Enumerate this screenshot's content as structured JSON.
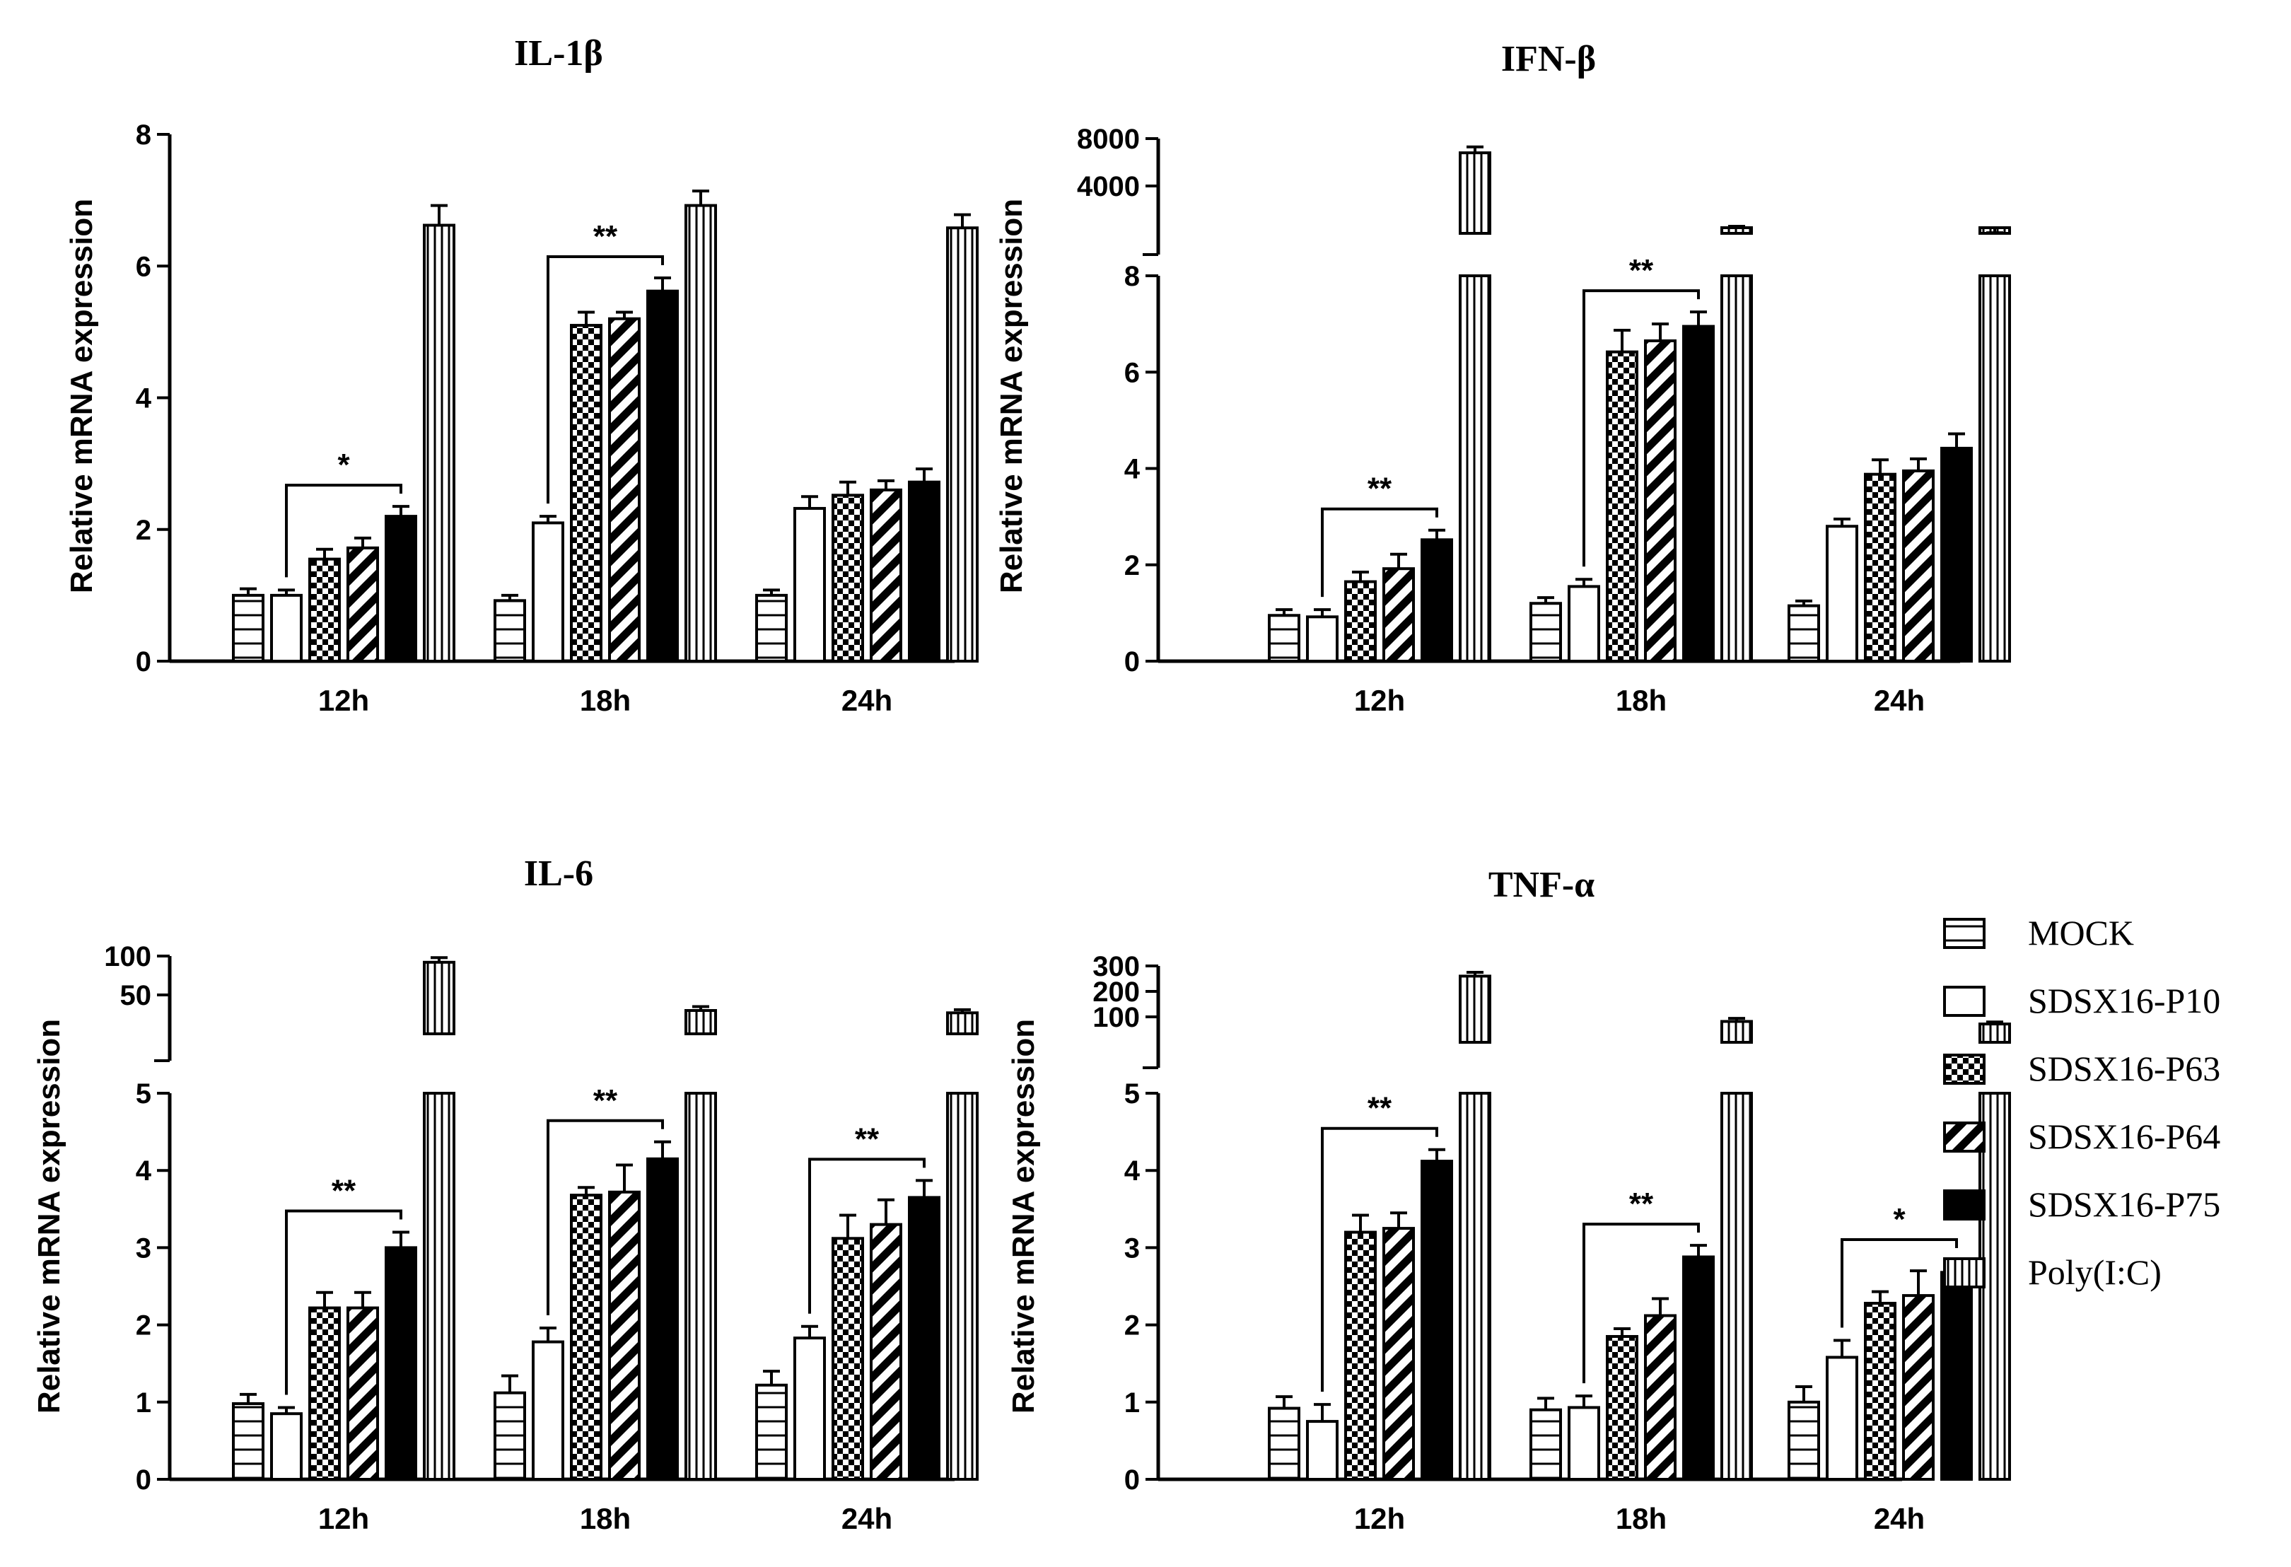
{
  "legend": [
    {
      "label": "MOCK",
      "pattern": "hlines"
    },
    {
      "label": "SDSX16-P10",
      "pattern": "white"
    },
    {
      "label": "SDSX16-P63",
      "pattern": "checker"
    },
    {
      "label": "SDSX16-P64",
      "pattern": "diag"
    },
    {
      "label": "SDSX16-P75",
      "pattern": "solid"
    },
    {
      "label": "Poly(I:C)",
      "pattern": "vlines"
    }
  ],
  "chart_data": [
    {
      "type": "bar",
      "title": "IL-1β",
      "xlabel": "",
      "ylabel": "Relative mRNA expression",
      "categories": [
        "12h",
        "18h",
        "24h"
      ],
      "ylim": [
        0,
        8
      ],
      "yticks": [
        "0",
        "2",
        "4",
        "6",
        "8"
      ],
      "series": [
        {
          "name": "MOCK",
          "values": [
            1.0,
            0.92,
            1.0
          ],
          "errors": [
            0.1,
            0.08,
            0.08
          ]
        },
        {
          "name": "SDSX16-P10",
          "values": [
            1.0,
            2.1,
            2.32
          ],
          "errors": [
            0.08,
            0.1,
            0.18
          ]
        },
        {
          "name": "SDSX16-P63",
          "values": [
            1.55,
            5.1,
            2.52
          ],
          "errors": [
            0.15,
            0.2,
            0.2
          ]
        },
        {
          "name": "SDSX16-P64",
          "values": [
            1.72,
            5.2,
            2.6
          ],
          "errors": [
            0.15,
            0.1,
            0.14
          ]
        },
        {
          "name": "SDSX16-P75",
          "values": [
            2.2,
            5.62,
            2.72
          ],
          "errors": [
            0.15,
            0.2,
            0.2
          ]
        },
        {
          "name": "Poly(I:C)",
          "values": [
            6.62,
            6.92,
            6.58
          ],
          "errors": [
            0.3,
            0.22,
            0.2
          ]
        }
      ],
      "annotations": [
        {
          "text": "*",
          "from": "SDSX16-P10",
          "to": "SDSX16-P75",
          "category": "12h"
        },
        {
          "text": "**",
          "from": "SDSX16-P10",
          "to": "SDSX16-P75",
          "category": "18h"
        }
      ]
    },
    {
      "type": "bar",
      "title": "IFN-β",
      "xlabel": "",
      "ylabel": "Relative mRNA expression",
      "categories": [
        "12h",
        "18h",
        "24h"
      ],
      "ylim": [
        0,
        8
      ],
      "yticks": [
        "0",
        "2",
        "4",
        "6",
        "8"
      ],
      "upper_segment": {
        "ylim": [
          0,
          8000
        ],
        "yticks": [
          "4000",
          "8000"
        ]
      },
      "series": [
        {
          "name": "MOCK",
          "values": [
            0.95,
            1.2,
            1.15
          ],
          "errors": [
            0.12,
            0.12,
            0.1
          ]
        },
        {
          "name": "SDSX16-P10",
          "values": [
            0.92,
            1.55,
            2.8
          ],
          "errors": [
            0.15,
            0.15,
            0.15
          ]
        },
        {
          "name": "SDSX16-P63",
          "values": [
            1.65,
            6.42,
            3.88
          ],
          "errors": [
            0.2,
            0.45,
            0.3
          ]
        },
        {
          "name": "SDSX16-P64",
          "values": [
            1.92,
            6.65,
            3.95
          ],
          "errors": [
            0.3,
            0.35,
            0.25
          ]
        },
        {
          "name": "SDSX16-P75",
          "values": [
            2.52,
            6.95,
            4.42
          ],
          "errors": [
            0.2,
            0.3,
            0.3
          ]
        },
        {
          "name": "Poly(I:C)",
          "values": [
            6800,
            300,
            40
          ],
          "errors": [
            500,
            300,
            10
          ]
        }
      ],
      "annotations": [
        {
          "text": "**",
          "from": "SDSX16-P10",
          "to": "SDSX16-P75",
          "category": "12h"
        },
        {
          "text": "**",
          "from": "SDSX16-P10",
          "to": "SDSX16-P75",
          "category": "18h"
        }
      ]
    },
    {
      "type": "bar",
      "title": "IL-6",
      "xlabel": "",
      "ylabel": "Relative mRNA expression",
      "categories": [
        "12h",
        "18h",
        "24h"
      ],
      "ylim": [
        0,
        5
      ],
      "yticks": [
        "0",
        "1",
        "2",
        "3",
        "4",
        "5"
      ],
      "upper_segment": {
        "ylim": [
          0,
          100
        ],
        "yticks": [
          "50",
          "100"
        ]
      },
      "series": [
        {
          "name": "MOCK",
          "values": [
            0.98,
            1.12,
            1.22
          ],
          "errors": [
            0.12,
            0.22,
            0.18
          ]
        },
        {
          "name": "SDSX16-P10",
          "values": [
            0.85,
            1.78,
            1.83
          ],
          "errors": [
            0.08,
            0.18,
            0.15
          ]
        },
        {
          "name": "SDSX16-P63",
          "values": [
            2.22,
            3.68,
            3.12
          ],
          "errors": [
            0.2,
            0.1,
            0.3
          ]
        },
        {
          "name": "SDSX16-P64",
          "values": [
            2.22,
            3.72,
            3.3
          ],
          "errors": [
            0.2,
            0.35,
            0.32
          ]
        },
        {
          "name": "SDSX16-P75",
          "values": [
            3.0,
            4.15,
            3.65
          ],
          "errors": [
            0.2,
            0.22,
            0.22
          ]
        },
        {
          "name": "Poly(I:C)",
          "values": [
            92,
            30,
            27
          ],
          "errors": [
            6,
            5,
            4
          ]
        }
      ],
      "annotations": [
        {
          "text": "**",
          "from": "SDSX16-P10",
          "to": "SDSX16-P75",
          "category": "12h"
        },
        {
          "text": "**",
          "from": "SDSX16-P10",
          "to": "SDSX16-P75",
          "category": "18h"
        },
        {
          "text": "**",
          "from": "SDSX16-P10",
          "to": "SDSX16-P75",
          "category": "24h"
        }
      ]
    },
    {
      "type": "bar",
      "title": "TNF-α",
      "xlabel": "",
      "ylabel": "Relative mRNA expression",
      "categories": [
        "12h",
        "18h",
        "24h"
      ],
      "ylim": [
        0,
        5
      ],
      "yticks": [
        "0",
        "1",
        "2",
        "3",
        "4",
        "5"
      ],
      "upper_segment": {
        "ylim": [
          0,
          300
        ],
        "yticks": [
          "100",
          "200",
          "300"
        ]
      },
      "series": [
        {
          "name": "MOCK",
          "values": [
            0.92,
            0.9,
            1.0
          ],
          "errors": [
            0.15,
            0.15,
            0.2
          ]
        },
        {
          "name": "SDSX16-P10",
          "values": [
            0.75,
            0.93,
            1.58
          ],
          "errors": [
            0.22,
            0.15,
            0.22
          ]
        },
        {
          "name": "SDSX16-P63",
          "values": [
            3.2,
            1.85,
            2.28
          ],
          "errors": [
            0.22,
            0.1,
            0.15
          ]
        },
        {
          "name": "SDSX16-P64",
          "values": [
            3.25,
            2.12,
            2.38
          ],
          "errors": [
            0.2,
            0.22,
            0.32
          ]
        },
        {
          "name": "SDSX16-P75",
          "values": [
            4.12,
            2.88,
            2.68
          ],
          "errors": [
            0.15,
            0.15,
            0.15
          ]
        },
        {
          "name": "Poly(I:C)",
          "values": [
            260,
            82,
            72
          ],
          "errors": [
            15,
            12,
            8
          ]
        }
      ],
      "annotations": [
        {
          "text": "**",
          "from": "SDSX16-P10",
          "to": "SDSX16-P75",
          "category": "12h"
        },
        {
          "text": "**",
          "from": "SDSX16-P10",
          "to": "SDSX16-P75",
          "category": "18h"
        },
        {
          "text": "*",
          "from": "SDSX16-P10",
          "to": "SDSX16-P75",
          "category": "24h"
        }
      ]
    }
  ]
}
